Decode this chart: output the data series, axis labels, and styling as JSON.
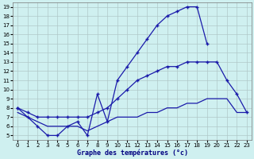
{
  "xlabel": "Graphe des températures (°c)",
  "yticks": [
    5,
    6,
    7,
    8,
    9,
    10,
    11,
    12,
    13,
    14,
    15,
    16,
    17,
    18,
    19
  ],
  "xticks": [
    0,
    1,
    2,
    3,
    4,
    5,
    6,
    7,
    8,
    9,
    10,
    11,
    12,
    13,
    14,
    15,
    16,
    17,
    18,
    19,
    20,
    21,
    22,
    23
  ],
  "line_color": "#1a1aaa",
  "bg_color": "#cff0f0",
  "grid_color": "#b0c8c8",
  "marker": "+",
  "line1_x": [
    0,
    1,
    2,
    3,
    4,
    5,
    6,
    7,
    8,
    9,
    10,
    11,
    12,
    13,
    14,
    15,
    16,
    17,
    18,
    19
  ],
  "line1_y": [
    8.0,
    7.0,
    6.0,
    5.0,
    5.0,
    6.0,
    6.5,
    5.0,
    9.5,
    6.5,
    11.0,
    12.5,
    14.0,
    15.5,
    17.0,
    18.0,
    18.5,
    19.0,
    19.0,
    15.0
  ],
  "line2_x": [
    0,
    1,
    2,
    3,
    4,
    5,
    6,
    7,
    8,
    9,
    10,
    11,
    12,
    13,
    14,
    15,
    16,
    17,
    18,
    19,
    20,
    21,
    22,
    23
  ],
  "line2_y": [
    8.0,
    7.5,
    7.0,
    7.0,
    7.0,
    7.0,
    7.0,
    7.0,
    7.5,
    8.0,
    9.0,
    10.0,
    11.0,
    11.5,
    12.0,
    12.5,
    12.5,
    13.0,
    13.0,
    13.0,
    13.0,
    11.0,
    9.5,
    7.5
  ],
  "line3_x": [
    0,
    1,
    2,
    3,
    4,
    5,
    6,
    7,
    8,
    9,
    10,
    11,
    12,
    13,
    14,
    15,
    16,
    17,
    18,
    19,
    20,
    21,
    22,
    23
  ],
  "line3_y": [
    7.5,
    7.0,
    6.5,
    6.0,
    6.0,
    6.0,
    6.0,
    5.5,
    6.0,
    6.5,
    7.0,
    7.0,
    7.0,
    7.5,
    7.5,
    8.0,
    8.0,
    8.5,
    8.5,
    9.0,
    9.0,
    9.0,
    7.5,
    7.5
  ]
}
